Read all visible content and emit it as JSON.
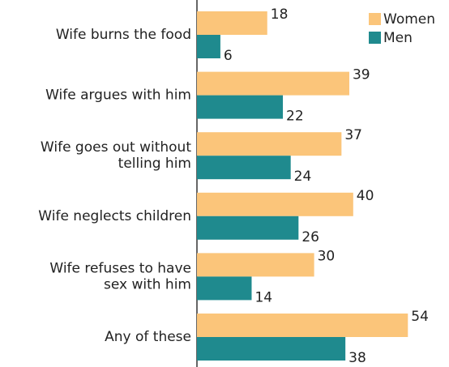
{
  "chart_data": {
    "type": "bar",
    "orientation": "horizontal",
    "categories": [
      [
        "Wife burns the food"
      ],
      [
        "Wife argues with him"
      ],
      [
        "Wife goes out without",
        "telling him"
      ],
      [
        "Wife neglects children"
      ],
      [
        "Wife refuses to have",
        "sex with him"
      ],
      [
        "Any of these"
      ]
    ],
    "series": [
      {
        "name": "Women",
        "color": "#fbc57a",
        "values": [
          18,
          39,
          37,
          40,
          30,
          54
        ]
      },
      {
        "name": "Men",
        "color": "#1f8a8e",
        "values": [
          6,
          22,
          24,
          26,
          14,
          38
        ]
      }
    ],
    "legend": "top-right"
  }
}
